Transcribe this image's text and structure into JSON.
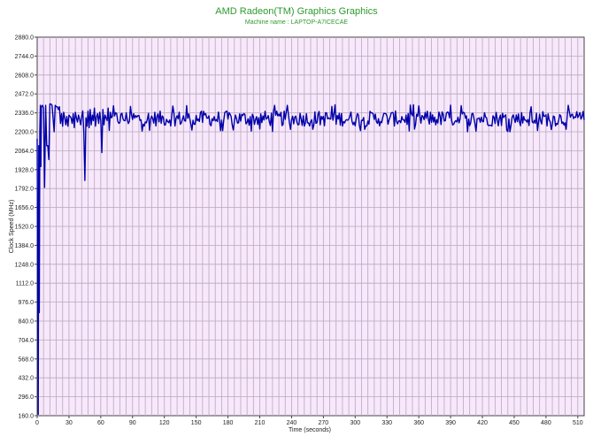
{
  "chart_data": {
    "type": "line",
    "title": "AMD Radeon(TM) Graphics Graphics",
    "subtitle": "Machine name : LAPTOP-A7ICECAE",
    "xlabel": "Time (seconds)",
    "ylabel": "Clock Speed (MHz)",
    "xlim": [
      0,
      516
    ],
    "ylim": [
      160,
      2880
    ],
    "x_ticks": [
      0,
      30,
      60,
      90,
      120,
      150,
      180,
      210,
      240,
      270,
      300,
      330,
      360,
      390,
      420,
      450,
      480,
      510
    ],
    "x_tick_labels": [
      "0",
      "30",
      "60",
      "90",
      "120",
      "150",
      "180",
      "210",
      "240",
      "270",
      "300",
      "330",
      "360",
      "390",
      "420",
      "450",
      "480",
      "510"
    ],
    "y_ticks": [
      160,
      296,
      432,
      568,
      704,
      840,
      976,
      1112,
      1248,
      1384,
      1520,
      1656,
      1792,
      1928,
      2064,
      2200,
      2336,
      2472,
      2608,
      2744,
      2880
    ],
    "y_tick_labels": [
      "160.0",
      "296.0",
      "432.0",
      "568.0",
      "704.0",
      "840.0",
      "976.0",
      "1112.0",
      "1248.0",
      "1384.0",
      "1520.0",
      "1656.0",
      "1792.0",
      "1928.0",
      "2064.0",
      "2200.0",
      "2336.0",
      "2472.0",
      "2608.0",
      "2744.0",
      "2880.0"
    ],
    "grid": true,
    "x_minor_step": 6,
    "series": [
      {
        "color": "#0000aa",
        "x": [
          0,
          1,
          1.5,
          2,
          2.5,
          3,
          3.5,
          4,
          5,
          6,
          7,
          8,
          9,
          10,
          11,
          12,
          13,
          14,
          15,
          16,
          17,
          18,
          19,
          20,
          21,
          22,
          23,
          24,
          25,
          26,
          27,
          28,
          29,
          30,
          31,
          32,
          33,
          34,
          35,
          36,
          37,
          38,
          39,
          40,
          41,
          42,
          43,
          44,
          45,
          46,
          47,
          48,
          49,
          50,
          51,
          52,
          53,
          54,
          55,
          56,
          57,
          58,
          59,
          60,
          61,
          62,
          63,
          64,
          65,
          66,
          67,
          68,
          69,
          70
        ],
        "y": [
          2150,
          170,
          2100,
          900,
          2200,
          2390,
          1950,
          2380,
          2390,
          2370,
          1800,
          2390,
          2100,
          2100,
          2000,
          2400,
          2400,
          2390,
          2300,
          2200,
          2390,
          2380,
          2380,
          2360,
          2380,
          2260,
          2330,
          2240,
          2340,
          2300,
          2250,
          2310,
          2240,
          2320,
          2310,
          2300,
          2260,
          2330,
          2230,
          2340,
          2300,
          2270,
          2320,
          2290,
          2250,
          2310,
          2350,
          2200,
          1850,
          2300,
          2240,
          2350,
          2230,
          2360,
          2250,
          2320,
          2280,
          2370,
          2240,
          2310,
          2330,
          2260,
          2340,
          2280,
          2050,
          2360,
          2250,
          2320,
          2300,
          2280,
          2370,
          2210,
          2340,
          2300
        ]
      }
    ]
  }
}
